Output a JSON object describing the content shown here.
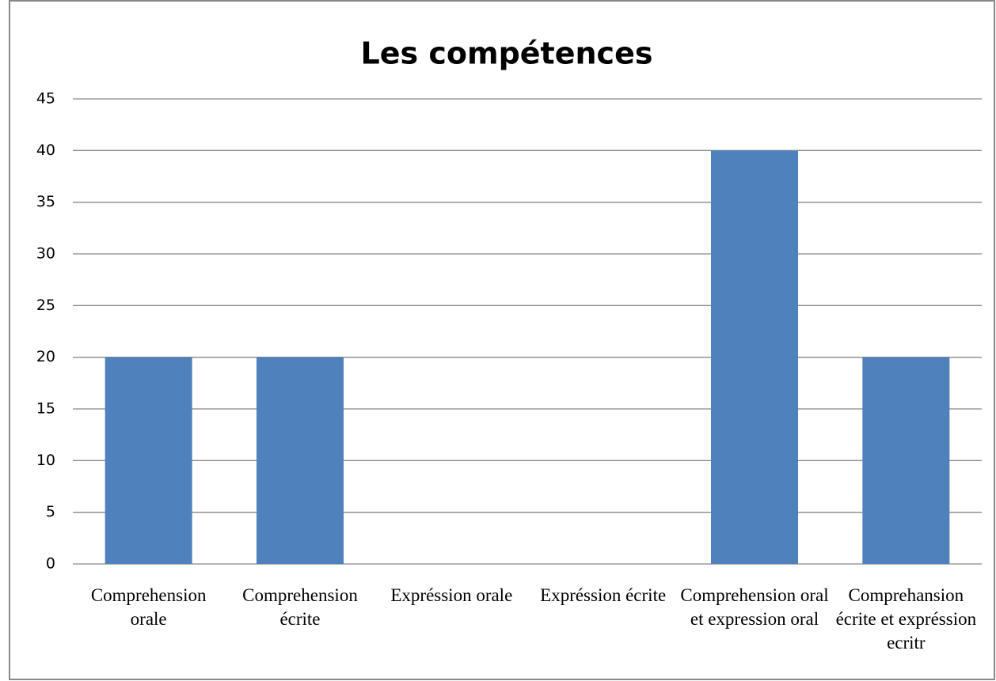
{
  "chart_data": {
    "type": "bar",
    "title": "Les compétences",
    "categories": [
      "Comprehension orale",
      "Comprehension écrite",
      "Expréssion orale",
      "Expréssion écrite",
      "Comprehension oral et expression oral",
      "Comprehansion écrite et expréssion ecritr"
    ],
    "values": [
      20,
      20,
      0,
      0,
      40,
      20
    ],
    "color": "#4f81bd",
    "ylim": [
      0,
      45
    ],
    "yticks": [
      0,
      5,
      10,
      15,
      20,
      25,
      30,
      35,
      40,
      45
    ],
    "grid": true
  }
}
